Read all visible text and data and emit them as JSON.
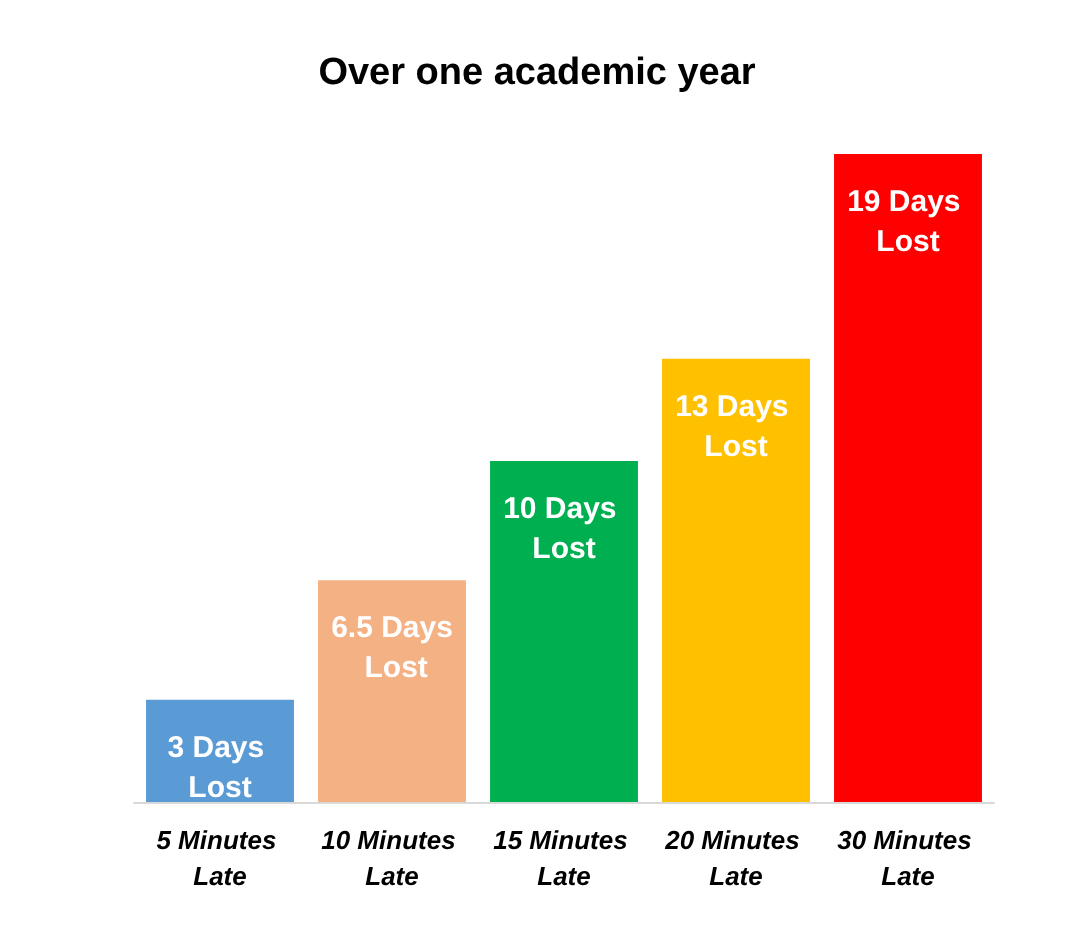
{
  "chart_data": {
    "type": "bar",
    "title": "Over one academic year",
    "categories": [
      "5 Minutes Late",
      "10 Minutes Late",
      "15 Minutes Late",
      "20 Minutes Late",
      "30 Minutes Late"
    ],
    "values": [
      3,
      6.5,
      10,
      13,
      19
    ],
    "colors": [
      "#5b9bd5",
      "#f4b183",
      "#00b050",
      "#ffc000",
      "#ff0000"
    ],
    "value_labels": [
      "3 Days Lost",
      "6.5 Days Lost",
      "10 Days Lost",
      "13 Days Lost",
      "19 Days Lost"
    ]
  }
}
